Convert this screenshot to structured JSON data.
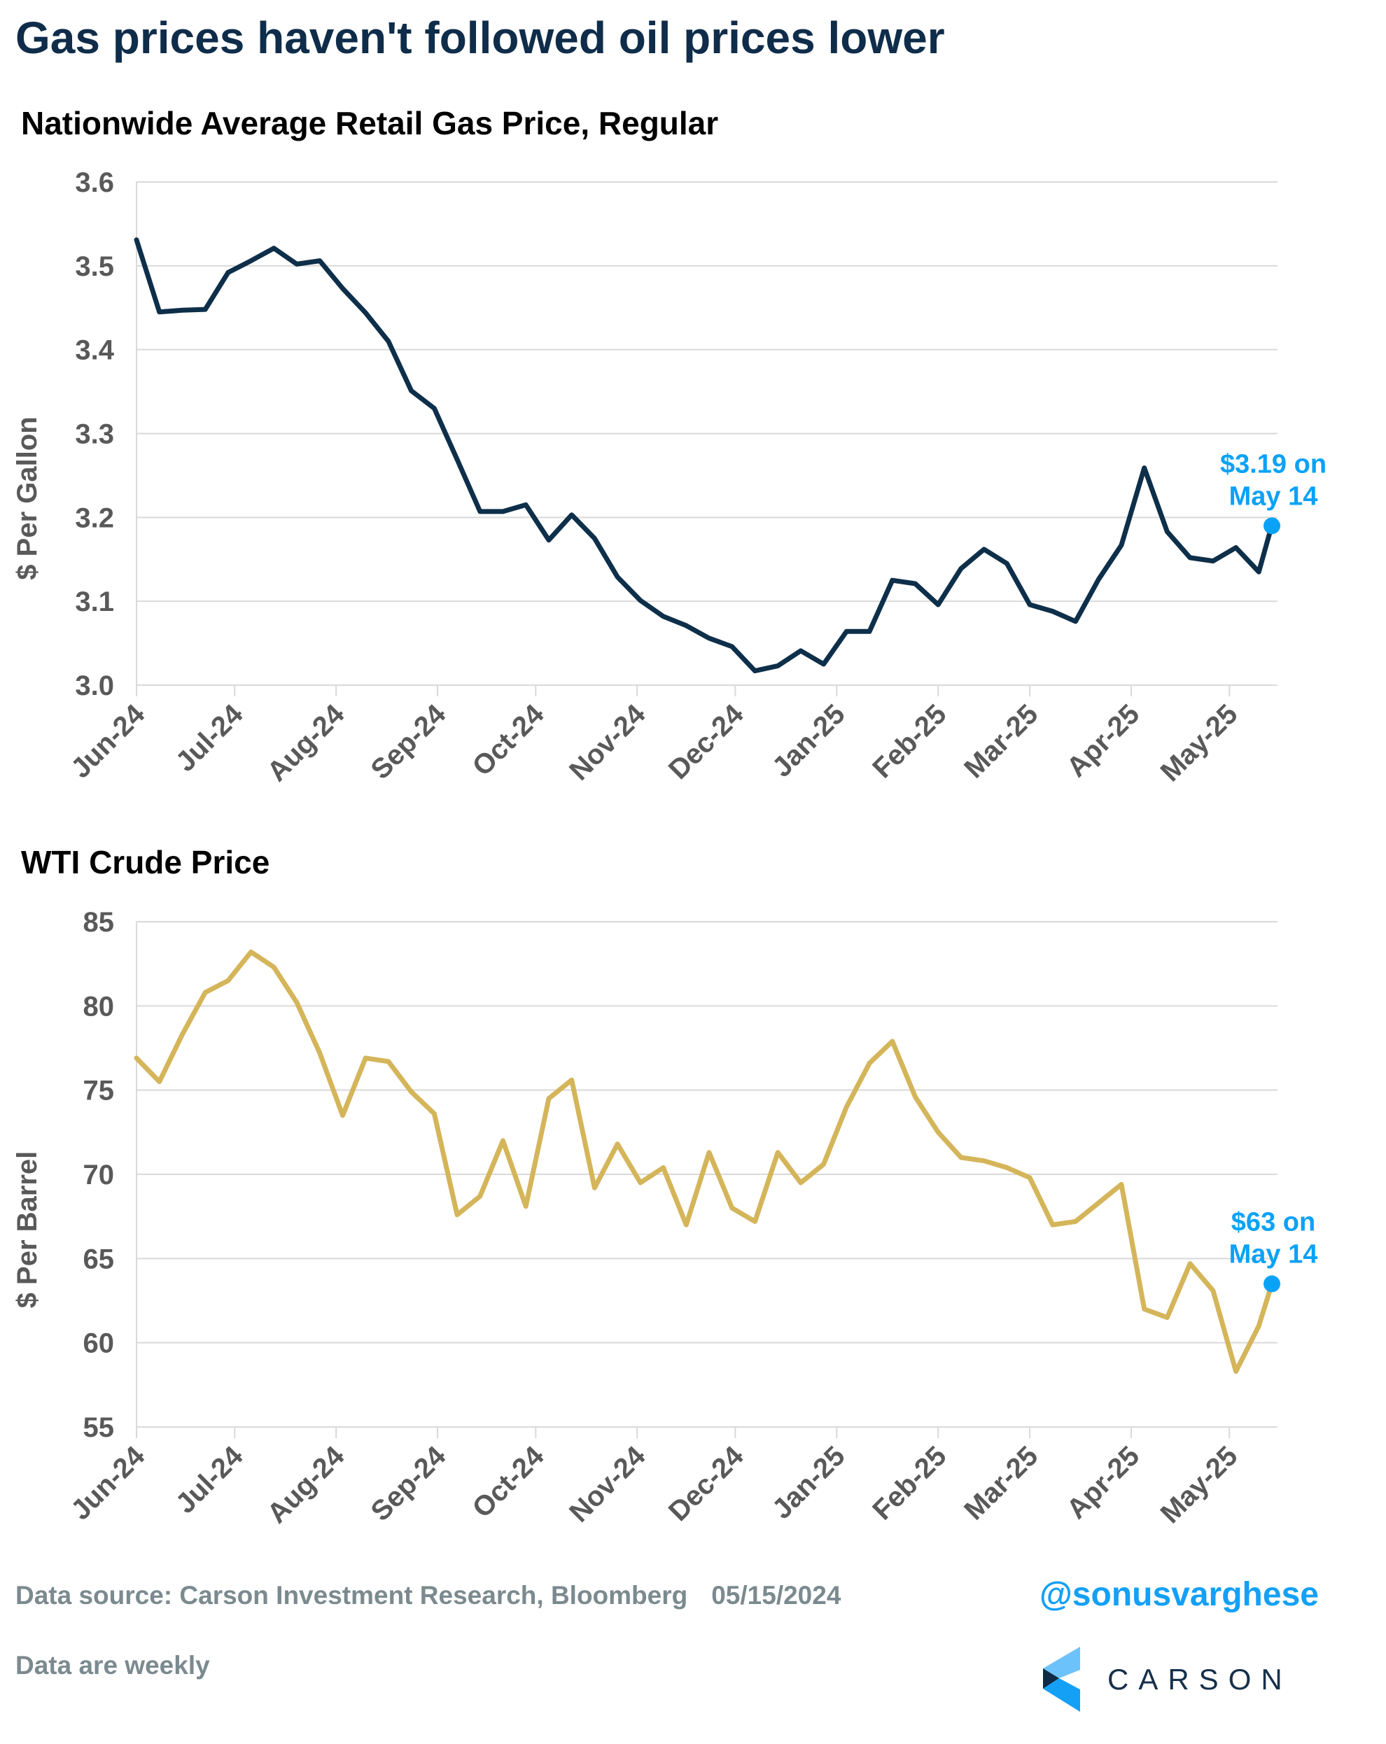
{
  "title": "Gas prices haven't followed oil prices lower",
  "footer": {
    "source": "Data source: Carson Investment Research, Bloomberg",
    "date": "05/15/2024",
    "note": "Data are weekly",
    "handle": "@sonusvarghese",
    "logo_text": "CARSON"
  },
  "colors": {
    "gas_line": "#0e2f4a",
    "wti_line": "#d4b55a",
    "highlight": "#0aa2f7"
  },
  "chart_data": [
    {
      "type": "line",
      "title": "Nationwide Average Retail Gas Price, Regular",
      "ylabel": "$ Per Gallon",
      "xlabel": "",
      "ylim": [
        3.0,
        3.6
      ],
      "yticks": [
        "3.0",
        "3.1",
        "3.2",
        "3.3",
        "3.4",
        "3.5",
        "3.6"
      ],
      "grid": true,
      "xticks": [
        "Jun-24",
        "Jul-24",
        "Aug-24",
        "Sep-24",
        "Oct-24",
        "Nov-24",
        "Dec-24",
        "Jan-25",
        "Feb-25",
        "Mar-25",
        "Apr-25",
        "May-25"
      ],
      "annotation": {
        "line1": "$3.19 on",
        "line2": "May 14",
        "x": "2025-05-14",
        "y": 3.19
      },
      "x": [
        "2024-06-01",
        "2024-06-08",
        "2024-06-15",
        "2024-06-22",
        "2024-06-29",
        "2024-07-06",
        "2024-07-13",
        "2024-07-20",
        "2024-07-27",
        "2024-08-03",
        "2024-08-10",
        "2024-08-17",
        "2024-08-24",
        "2024-08-31",
        "2024-09-07",
        "2024-09-14",
        "2024-09-21",
        "2024-09-28",
        "2024-10-05",
        "2024-10-12",
        "2024-10-19",
        "2024-10-26",
        "2024-11-02",
        "2024-11-09",
        "2024-11-16",
        "2024-11-23",
        "2024-11-30",
        "2024-12-07",
        "2024-12-14",
        "2024-12-21",
        "2024-12-28",
        "2025-01-04",
        "2025-01-11",
        "2025-01-18",
        "2025-01-25",
        "2025-02-01",
        "2025-02-08",
        "2025-02-15",
        "2025-02-22",
        "2025-03-01",
        "2025-03-08",
        "2025-03-15",
        "2025-03-22",
        "2025-03-29",
        "2025-04-05",
        "2025-04-12",
        "2025-04-19",
        "2025-04-26",
        "2025-05-03",
        "2025-05-10",
        "2025-05-14"
      ],
      "values": [
        3.531,
        3.445,
        3.447,
        3.448,
        3.492,
        3.506,
        3.521,
        3.502,
        3.506,
        3.473,
        3.444,
        3.41,
        3.351,
        3.33,
        3.269,
        3.207,
        3.207,
        3.215,
        3.173,
        3.203,
        3.175,
        3.129,
        3.101,
        3.082,
        3.071,
        3.056,
        3.046,
        3.017,
        3.023,
        3.041,
        3.025,
        3.064,
        3.064,
        3.125,
        3.121,
        3.096,
        3.139,
        3.162,
        3.145,
        3.096,
        3.088,
        3.076,
        3.126,
        3.167,
        3.259,
        3.183,
        3.152,
        3.148,
        3.164,
        3.135,
        3.191
      ]
    },
    {
      "type": "line",
      "title": "WTI Crude Price",
      "ylabel": "$ Per Barrel",
      "xlabel": "",
      "ylim": [
        55,
        85
      ],
      "yticks": [
        "55",
        "60",
        "65",
        "70",
        "75",
        "80",
        "85"
      ],
      "grid": true,
      "xticks": [
        "Jun-24",
        "Jul-24",
        "Aug-24",
        "Sep-24",
        "Oct-24",
        "Nov-24",
        "Dec-24",
        "Jan-25",
        "Feb-25",
        "Mar-25",
        "Apr-25",
        "May-25"
      ],
      "annotation": {
        "line1": "$63 on",
        "line2": "May 14",
        "x": "2025-05-14",
        "y": 63.5
      },
      "x": [
        "2024-06-01",
        "2024-06-08",
        "2024-06-15",
        "2024-06-22",
        "2024-06-29",
        "2024-07-06",
        "2024-07-13",
        "2024-07-20",
        "2024-07-27",
        "2024-08-03",
        "2024-08-10",
        "2024-08-17",
        "2024-08-24",
        "2024-08-31",
        "2024-09-07",
        "2024-09-14",
        "2024-09-21",
        "2024-09-28",
        "2024-10-05",
        "2024-10-12",
        "2024-10-19",
        "2024-10-26",
        "2024-11-02",
        "2024-11-09",
        "2024-11-16",
        "2024-11-23",
        "2024-11-30",
        "2024-12-07",
        "2024-12-14",
        "2024-12-21",
        "2024-12-28",
        "2025-01-04",
        "2025-01-11",
        "2025-01-18",
        "2025-01-25",
        "2025-02-01",
        "2025-02-08",
        "2025-02-15",
        "2025-02-22",
        "2025-03-01",
        "2025-03-08",
        "2025-03-15",
        "2025-03-22",
        "2025-03-29",
        "2025-04-05",
        "2025-04-12",
        "2025-04-19",
        "2025-04-26",
        "2025-05-03",
        "2025-05-10",
        "2025-05-14"
      ],
      "values": [
        76.9,
        75.5,
        78.3,
        80.8,
        81.5,
        83.2,
        82.3,
        80.2,
        77.2,
        73.5,
        76.9,
        76.7,
        74.9,
        73.6,
        67.6,
        68.7,
        72.0,
        68.1,
        74.5,
        75.6,
        69.2,
        71.8,
        69.5,
        70.4,
        67.0,
        71.3,
        68.0,
        67.2,
        71.3,
        69.5,
        70.6,
        74.0,
        76.6,
        77.9,
        74.6,
        72.5,
        71.0,
        70.8,
        70.4,
        69.8,
        67.0,
        67.2,
        68.3,
        69.4,
        62.0,
        61.5,
        64.7,
        63.1,
        58.3,
        61.0,
        63.5
      ]
    }
  ]
}
